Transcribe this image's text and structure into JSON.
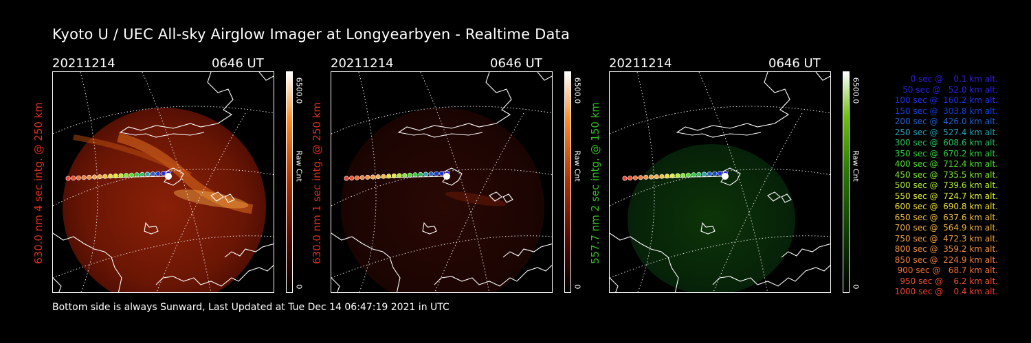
{
  "title": "Kyoto U / UEC All-sky Airglow Imager at Longyearbyen - Realtime Data",
  "footer": "Bottom side is always Sunward, Last Updated at Tue Dec 14 06:47:19 2021 in UTC",
  "panels": [
    {
      "date": "20211214",
      "time": "0646 UT",
      "ylabel": "630.0 nm 4 sec intg. @ 250 km",
      "label_color": "#e03020",
      "cbar_max": "6500.0",
      "cbar_min": "0",
      "cbar_unit": "Raw Cnt",
      "colormap": "red"
    },
    {
      "date": "20211214",
      "time": "0646 UT",
      "ylabel": "630.0 nm 1 sec intg. @ 250 km",
      "label_color": "#e03020",
      "cbar_max": "6500.0",
      "cbar_min": "0",
      "cbar_unit": "Raw Cnt",
      "colormap": "red"
    },
    {
      "date": "20211214",
      "time": "0646 UT",
      "ylabel": "557.7 nm 2 sec intg. @ 150 km",
      "label_color": "#30c020",
      "cbar_max": "6500.0",
      "cbar_min": "0",
      "cbar_unit": "Raw Cnt",
      "colormap": "green"
    }
  ],
  "legend": [
    {
      "text": "   0 sec @    0.1 km alt.",
      "color": "#3020e0"
    },
    {
      "text": "  50 sec @   52.0 km alt.",
      "color": "#2a22e8"
    },
    {
      "text": " 100 sec @  160.2 km alt.",
      "color": "#2030f0"
    },
    {
      "text": " 150 sec @  303.8 km alt.",
      "color": "#1040e0"
    },
    {
      "text": " 200 sec @  426.0 km alt.",
      "color": "#2060d0"
    },
    {
      "text": " 250 sec @  527.4 km alt.",
      "color": "#20a0b0"
    },
    {
      "text": " 300 sec @  608.6 km alt.",
      "color": "#20c060"
    },
    {
      "text": " 350 sec @  670.2 km alt.",
      "color": "#30d040"
    },
    {
      "text": " 400 sec @  712.4 km alt.",
      "color": "#50e030"
    },
    {
      "text": " 450 sec @  735.5 km alt.",
      "color": "#80e830"
    },
    {
      "text": " 500 sec @  739.6 km alt.",
      "color": "#b0f030"
    },
    {
      "text": " 550 sec @  724.7 km alt.",
      "color": "#e0f030"
    },
    {
      "text": " 600 sec @  690.8 km alt.",
      "color": "#f0e030"
    },
    {
      "text": " 650 sec @  637.6 km alt.",
      "color": "#f0c040"
    },
    {
      "text": " 700 sec @  564.9 km alt.",
      "color": "#f0b040"
    },
    {
      "text": " 750 sec @  472.3 km alt.",
      "color": "#f0a040"
    },
    {
      "text": " 800 sec @  359.2 km alt.",
      "color": "#f09040"
    },
    {
      "text": " 850 sec @  224.9 km alt.",
      "color": "#f08040"
    },
    {
      "text": " 900 sec @   68.7 km alt.",
      "color": "#f07030"
    },
    {
      "text": " 950 sec @    6.2 km alt.",
      "color": "#f05030"
    },
    {
      "text": "1000 sec @    0.4 km alt.",
      "color": "#f04030"
    }
  ]
}
